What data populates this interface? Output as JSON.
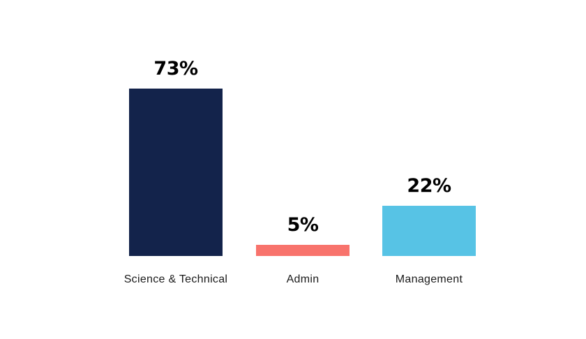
{
  "page": {
    "background": "#FFFFFF"
  },
  "chart_data": {
    "type": "bar",
    "categories": [
      "Science & Technical",
      "Admin",
      "Management"
    ],
    "values": [
      73,
      5,
      22
    ],
    "value_labels": [
      "73%",
      "5%",
      "22%"
    ],
    "bar_colors": [
      "#13234B",
      "#F8736C",
      "#57C3E5"
    ],
    "value_label_color": "#000000",
    "category_label_color": "#1A1A1A",
    "grid": false,
    "axes_shown": false,
    "legend": "none"
  }
}
